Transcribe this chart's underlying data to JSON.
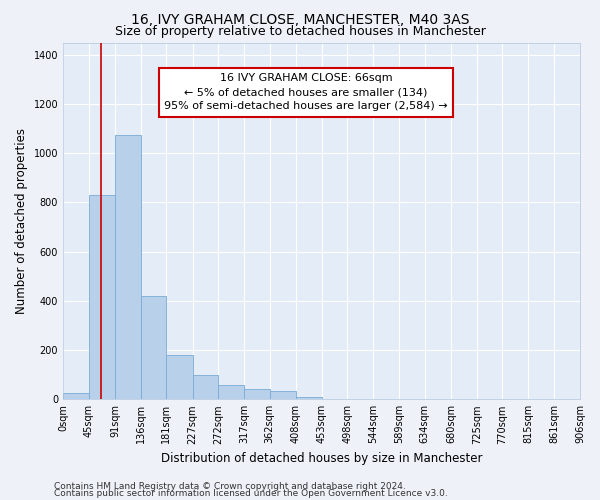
{
  "title": "16, IVY GRAHAM CLOSE, MANCHESTER, M40 3AS",
  "subtitle": "Size of property relative to detached houses in Manchester",
  "xlabel": "Distribution of detached houses by size in Manchester",
  "ylabel": "Number of detached properties",
  "footnote1": "Contains HM Land Registry data © Crown copyright and database right 2024.",
  "footnote2": "Contains public sector information licensed under the Open Government Licence v3.0.",
  "annotation_title": "16 IVY GRAHAM CLOSE: 66sqm",
  "annotation_line1": "← 5% of detached houses are smaller (134)",
  "annotation_line2": "95% of semi-detached houses are larger (2,584) →",
  "property_size": 66,
  "bar_edges": [
    0,
    45,
    91,
    136,
    181,
    227,
    272,
    317,
    362,
    408,
    453,
    498,
    544,
    589,
    634,
    680,
    725,
    770,
    815,
    861,
    906
  ],
  "bar_heights": [
    25,
    830,
    1075,
    420,
    180,
    100,
    60,
    40,
    35,
    10,
    0,
    0,
    0,
    0,
    0,
    0,
    0,
    0,
    0,
    0
  ],
  "bar_color": "#b8d0ea",
  "bar_edge_color": "#7aabd4",
  "red_line_color": "#cc0000",
  "annotation_box_color": "#cc0000",
  "background_color": "#eef2f8",
  "plot_bg_color": "#e4ecf7",
  "ylim": [
    0,
    1450
  ],
  "yticks": [
    0,
    200,
    400,
    600,
    800,
    1000,
    1200,
    1400
  ],
  "xlim": [
    0,
    906
  ],
  "tick_labels": [
    "0sqm",
    "45sqm",
    "91sqm",
    "136sqm",
    "181sqm",
    "227sqm",
    "272sqm",
    "317sqm",
    "362sqm",
    "408sqm",
    "453sqm",
    "498sqm",
    "544sqm",
    "589sqm",
    "634sqm",
    "680sqm",
    "725sqm",
    "770sqm",
    "815sqm",
    "861sqm",
    "906sqm"
  ],
  "title_fontsize": 10,
  "subtitle_fontsize": 9,
  "axis_label_fontsize": 8.5,
  "tick_fontsize": 7,
  "annotation_fontsize": 8,
  "footnote_fontsize": 6.5
}
